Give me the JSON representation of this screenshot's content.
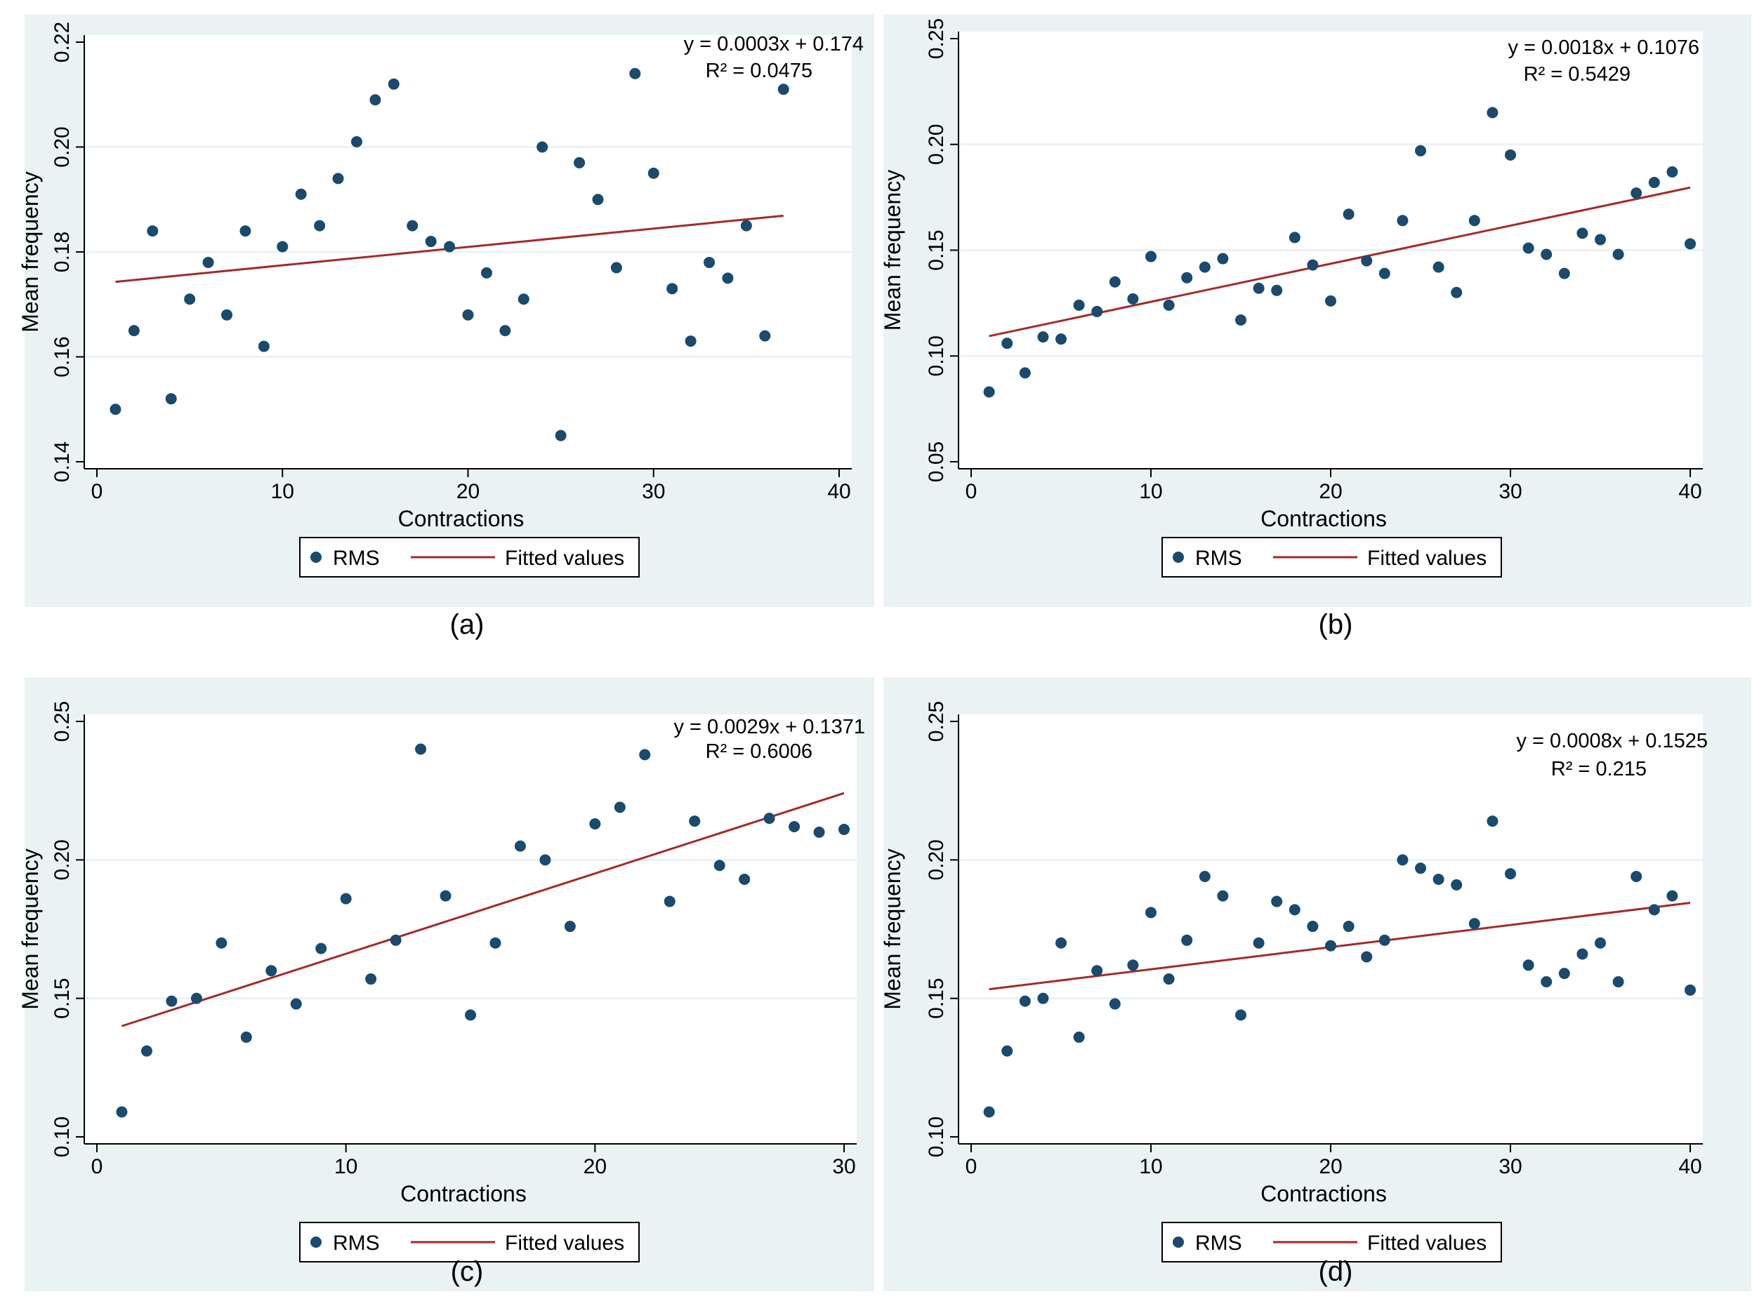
{
  "colors": {
    "panel_bg": "#eaf2f3",
    "marker": "#1a4a6e",
    "fit_line": "#a52a2a"
  },
  "chart_data": [
    {
      "type": "scatter",
      "panel_label": "(a)",
      "xlabel": "Contractions",
      "ylabel": "Mean frequency",
      "xlim": [
        0,
        40
      ],
      "ylim": [
        0.14,
        0.22
      ],
      "xticks": [
        0,
        10,
        20,
        30,
        40
      ],
      "yticks": [
        0.14,
        0.16,
        0.18,
        0.2,
        0.22
      ],
      "tick_decimals": 2,
      "equation": "y = 0.0003x + 0.174",
      "r2": "R² = 0.0475",
      "legend": [
        "RMS",
        "Fitted values"
      ],
      "series": [
        {
          "name": "RMS",
          "x": [
            1,
            2,
            3,
            4,
            5,
            6,
            7,
            8,
            9,
            10,
            11,
            12,
            13,
            14,
            15,
            16,
            17,
            18,
            19,
            20,
            21,
            22,
            23,
            24,
            25,
            26,
            27,
            28,
            29,
            30,
            31,
            32,
            33,
            34,
            35,
            36,
            37
          ],
          "y": [
            0.15,
            0.165,
            0.184,
            0.152,
            0.171,
            0.178,
            0.168,
            0.184,
            0.162,
            0.181,
            0.191,
            0.185,
            0.194,
            0.201,
            0.209,
            0.212,
            0.185,
            0.182,
            0.181,
            0.168,
            0.176,
            0.165,
            0.171,
            0.2,
            0.145,
            0.197,
            0.19,
            0.177,
            0.214,
            0.195,
            0.173,
            0.163,
            0.178,
            0.175,
            0.185,
            0.164,
            0.211
          ]
        },
        {
          "name": "Fitted values",
          "x": [
            1,
            37
          ],
          "y": [
            0.1743,
            0.1869
          ]
        }
      ]
    },
    {
      "type": "scatter",
      "panel_label": "(b)",
      "xlabel": "Contractions",
      "ylabel": "Mean frequency",
      "xlim": [
        0,
        40
      ],
      "ylim": [
        0.05,
        0.25
      ],
      "xticks": [
        0,
        10,
        20,
        30,
        40
      ],
      "yticks": [
        0.05,
        0.1,
        0.15,
        0.2,
        0.25
      ],
      "tick_decimals": 2,
      "equation": "y = 0.0018x + 0.1076",
      "r2": "R² = 0.5429",
      "legend": [
        "RMS",
        "Fitted values"
      ],
      "series": [
        {
          "name": "RMS",
          "x": [
            1,
            2,
            3,
            4,
            5,
            6,
            7,
            8,
            9,
            10,
            11,
            12,
            13,
            14,
            15,
            16,
            17,
            18,
            19,
            20,
            21,
            22,
            23,
            24,
            25,
            26,
            27,
            28,
            29,
            30,
            31,
            32,
            33,
            34,
            35,
            36,
            37,
            38,
            39,
            40
          ],
          "y": [
            0.083,
            0.106,
            0.092,
            0.109,
            0.108,
            0.124,
            0.121,
            0.135,
            0.127,
            0.147,
            0.124,
            0.137,
            0.142,
            0.146,
            0.117,
            0.132,
            0.131,
            0.156,
            0.143,
            0.126,
            0.167,
            0.145,
            0.139,
            0.164,
            0.197,
            0.142,
            0.13,
            0.164,
            0.215,
            0.195,
            0.151,
            0.148,
            0.139,
            0.158,
            0.155,
            0.148,
            0.177,
            0.182,
            0.187,
            0.153
          ]
        },
        {
          "name": "Fitted values",
          "x": [
            1,
            40
          ],
          "y": [
            0.1094,
            0.1796
          ]
        }
      ]
    },
    {
      "type": "scatter",
      "panel_label": "(c)",
      "xlabel": "Contractions",
      "ylabel": "Mean frequency",
      "xlim": [
        0,
        30
      ],
      "ylim": [
        0.1,
        0.25
      ],
      "xticks": [
        0,
        10,
        20,
        30
      ],
      "yticks": [
        0.1,
        0.15,
        0.2,
        0.25
      ],
      "tick_decimals": 2,
      "equation": "y = 0.0029x + 0.1371",
      "r2": "R² = 0.6006",
      "legend": [
        "RMS",
        "Fitted values"
      ],
      "series": [
        {
          "name": "RMS",
          "x": [
            1,
            2,
            3,
            4,
            5,
            6,
            7,
            8,
            9,
            10,
            11,
            12,
            13,
            14,
            15,
            16,
            17,
            18,
            19,
            20,
            21,
            22,
            23,
            24,
            25,
            26,
            27,
            28,
            29,
            30
          ],
          "y": [
            0.109,
            0.131,
            0.149,
            0.15,
            0.17,
            0.136,
            0.16,
            0.148,
            0.168,
            0.186,
            0.157,
            0.171,
            0.24,
            0.187,
            0.144,
            0.17,
            0.205,
            0.2,
            0.176,
            0.213,
            0.219,
            0.238,
            0.185,
            0.214,
            0.198,
            0.193,
            0.215,
            0.212,
            0.21,
            0.211
          ]
        },
        {
          "name": "Fitted values",
          "x": [
            1,
            30
          ],
          "y": [
            0.14,
            0.2241
          ]
        }
      ]
    },
    {
      "type": "scatter",
      "panel_label": "(d)",
      "xlabel": "Contractions",
      "ylabel": "Mean frequency",
      "xlim": [
        0,
        40
      ],
      "ylim": [
        0.1,
        0.25
      ],
      "xticks": [
        0,
        10,
        20,
        30,
        40
      ],
      "yticks": [
        0.1,
        0.15,
        0.2,
        0.25
      ],
      "tick_decimals": 2,
      "equation": "y = 0.0008x + 0.1525",
      "r2": "R² = 0.215",
      "legend": [
        "RMS",
        "Fitted values"
      ],
      "series": [
        {
          "name": "RMS",
          "x": [
            1,
            2,
            3,
            4,
            5,
            6,
            7,
            8,
            9,
            10,
            11,
            12,
            13,
            14,
            15,
            16,
            17,
            18,
            19,
            20,
            21,
            22,
            23,
            24,
            25,
            26,
            27,
            28,
            29,
            30,
            31,
            32,
            33,
            34,
            35,
            36,
            37,
            38,
            39,
            40
          ],
          "y": [
            0.109,
            0.131,
            0.149,
            0.15,
            0.17,
            0.136,
            0.16,
            0.148,
            0.162,
            0.181,
            0.157,
            0.171,
            0.194,
            0.187,
            0.144,
            0.17,
            0.185,
            0.182,
            0.176,
            0.169,
            0.176,
            0.165,
            0.171,
            0.2,
            0.197,
            0.193,
            0.191,
            0.177,
            0.214,
            0.195,
            0.162,
            0.156,
            0.159,
            0.166,
            0.17,
            0.156,
            0.194,
            0.182,
            0.187,
            0.153
          ]
        },
        {
          "name": "Fitted values",
          "x": [
            1,
            40
          ],
          "y": [
            0.1533,
            0.1845
          ]
        }
      ]
    }
  ]
}
